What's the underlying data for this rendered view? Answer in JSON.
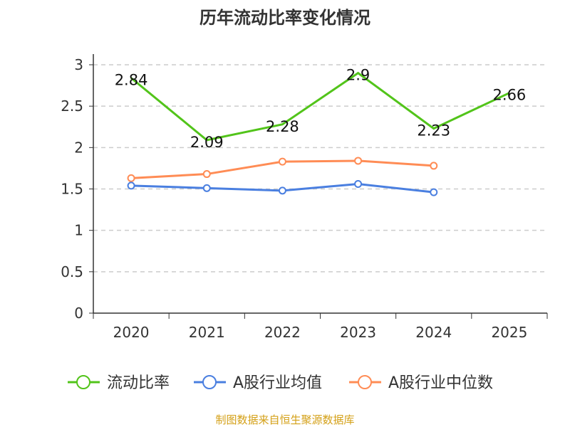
{
  "chart_data": {
    "type": "line",
    "title": "历年流动比率变化情况",
    "categories": [
      "2020",
      "2021",
      "2022",
      "2023",
      "2024",
      "2025"
    ],
    "ylim": [
      0,
      3
    ],
    "yticks": [
      "0",
      "0.5",
      "1",
      "1.5",
      "2",
      "2.5",
      "3"
    ],
    "grid": true,
    "legend_placement": "bottom",
    "series": [
      {
        "name": "流动比率",
        "color": "#52c41a",
        "values": [
          2.84,
          2.09,
          2.28,
          2.9,
          2.23,
          2.66
        ],
        "labels": [
          "2.84",
          "2.09",
          "2.28",
          "2.9",
          "2.23",
          "2.66"
        ]
      },
      {
        "name": "A股行业均值",
        "color": "#4a7fe0",
        "values": [
          1.54,
          1.51,
          1.48,
          1.56,
          1.46,
          null
        ]
      },
      {
        "name": "A股行业中位数",
        "color": "#ff8c55",
        "values": [
          1.63,
          1.68,
          1.83,
          1.84,
          1.78,
          null
        ]
      }
    ],
    "source": "制图数据来自恒生聚源数据库"
  }
}
